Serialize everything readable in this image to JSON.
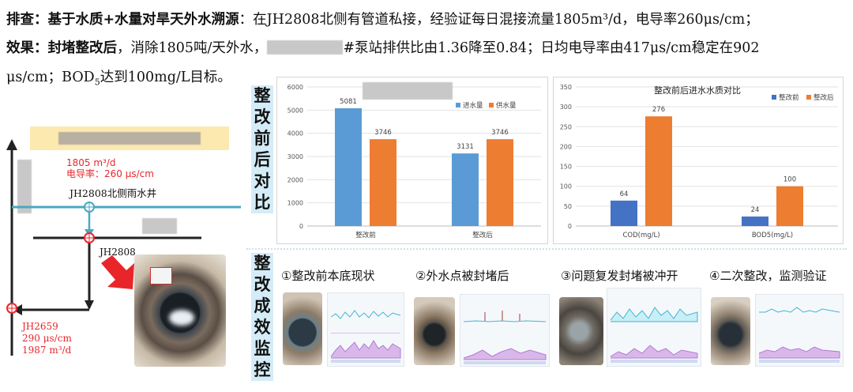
{
  "header": {
    "line1_label": "排查：基于水质+水量对旱天外水溯源",
    "line1_text": "：在JH2808北侧有管道私接，经验证每日混接流量1805m³/d，电导率260μs/cm；",
    "line2_label": "效果：封堵整改后",
    "line2_text_a": "，消除1805吨/天外水，",
    "line2_text_b": "#泵站排供比由1.36降至0.84；日均电导率由417μs/cm稳定在902",
    "line3_text_a": "μs/cm；BOD",
    "line3_sub": "5",
    "line3_text_b": "达到100mg/L目标。"
  },
  "diagram": {
    "flow_label": "1805 m³/d",
    "cond_label": "电导率：260 μs/cm",
    "well_label": "JH2808北侧雨水井",
    "node_label": "JH2808",
    "outlet_name": "JH2659",
    "outlet_cond": "290 μs/cm",
    "outlet_flow": "1987 m³/d"
  },
  "section_compare": {
    "label": "整改前后对比"
  },
  "section_monitor": {
    "label": "整改成效监控"
  },
  "colors": {
    "blue": "#5b9bd5",
    "orange": "#ed7d31",
    "pipe": "#4aa8c0",
    "red": "#e8262a",
    "highlight": "#fbe9b0"
  },
  "chart_data": [
    {
      "type": "bar",
      "title": "",
      "categories": [
        "整改前",
        "整改后"
      ],
      "series": [
        {
          "name": "进水量",
          "values": [
            5081,
            3131
          ],
          "color": "#5b9bd5"
        },
        {
          "name": "供水量",
          "values": [
            3746,
            3746
          ],
          "color": "#ed7d31"
        }
      ],
      "ylim": [
        0,
        6000
      ],
      "yticks": [
        0,
        1000,
        2000,
        3000,
        4000,
        5000,
        6000
      ],
      "legend": "top-right",
      "grid": true
    },
    {
      "type": "bar",
      "title": "整改前后进水水质对比",
      "categories": [
        "COD(mg/L)",
        "BOD5(mg/L)"
      ],
      "series": [
        {
          "name": "整改前",
          "values": [
            64,
            24
          ],
          "color": "#4472c4"
        },
        {
          "name": "整改后",
          "values": [
            276,
            100
          ],
          "color": "#ed7d31"
        }
      ],
      "ylim": [
        0,
        350
      ],
      "yticks": [
        0,
        50,
        100,
        150,
        200,
        250,
        300,
        350
      ],
      "legend": "top-right",
      "grid": true
    }
  ],
  "steps": [
    {
      "label": "①整改前本底现状"
    },
    {
      "label": "②外水点被封堵后"
    },
    {
      "label": "③问题复发封堵被冲开"
    },
    {
      "label": "④二次整改，监测验证"
    }
  ]
}
